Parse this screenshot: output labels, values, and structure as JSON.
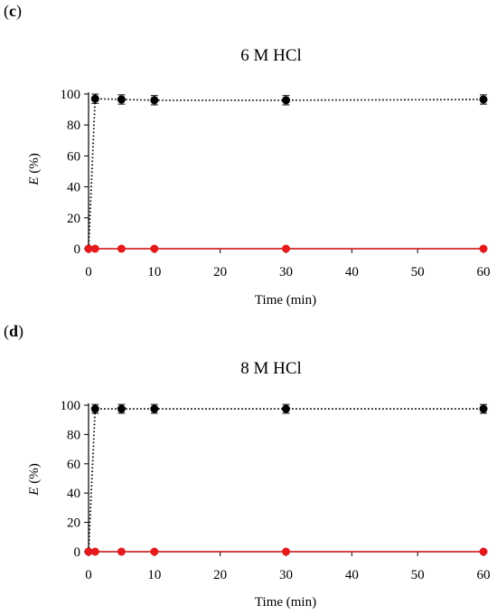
{
  "chart_data": [
    {
      "panel_label": "c",
      "type": "scatter",
      "title": "6 M HCl",
      "xlabel": "Time (min)",
      "ylabel_symbol": "E",
      "ylabel_unit": "(%)",
      "xlim": [
        0,
        60
      ],
      "ylim": [
        0,
        100
      ],
      "xticks": [
        0,
        10,
        20,
        30,
        40,
        50,
        60
      ],
      "yticks": [
        0,
        20,
        40,
        60,
        80,
        100
      ],
      "grid": false,
      "series": [
        {
          "color": "#000000",
          "line": "dotted",
          "x": [
            0,
            1,
            5,
            10,
            30,
            60
          ],
          "y": [
            0,
            97,
            96.5,
            96,
            96,
            96.5
          ],
          "err": [
            0,
            3,
            3,
            3,
            3,
            3
          ]
        },
        {
          "color": "#e41a1c",
          "line": "solid",
          "x": [
            0,
            1,
            5,
            10,
            30,
            60
          ],
          "y": [
            0,
            0,
            0,
            0,
            0,
            0
          ],
          "err": [
            0,
            0,
            0,
            0,
            0,
            0
          ]
        }
      ]
    },
    {
      "panel_label": "d",
      "type": "scatter",
      "title": "8 M HCl",
      "xlabel": "Time (min)",
      "ylabel_symbol": "E",
      "ylabel_unit": "(%)",
      "xlim": [
        0,
        60
      ],
      "ylim": [
        0,
        100
      ],
      "xticks": [
        0,
        10,
        20,
        30,
        40,
        50,
        60
      ],
      "yticks": [
        0,
        20,
        40,
        60,
        80,
        100
      ],
      "grid": false,
      "series": [
        {
          "color": "#000000",
          "line": "dotted",
          "x": [
            0,
            1,
            5,
            10,
            30,
            60
          ],
          "y": [
            0,
            97.5,
            97.5,
            97.5,
            97.5,
            97.5
          ],
          "err": [
            0,
            3,
            3,
            3,
            3,
            3
          ]
        },
        {
          "color": "#e41a1c",
          "line": "solid",
          "x": [
            0,
            1,
            5,
            10,
            30,
            60
          ],
          "y": [
            0,
            0,
            0,
            0,
            0,
            0
          ],
          "err": [
            0,
            0,
            0,
            0,
            0,
            0
          ]
        }
      ]
    }
  ]
}
